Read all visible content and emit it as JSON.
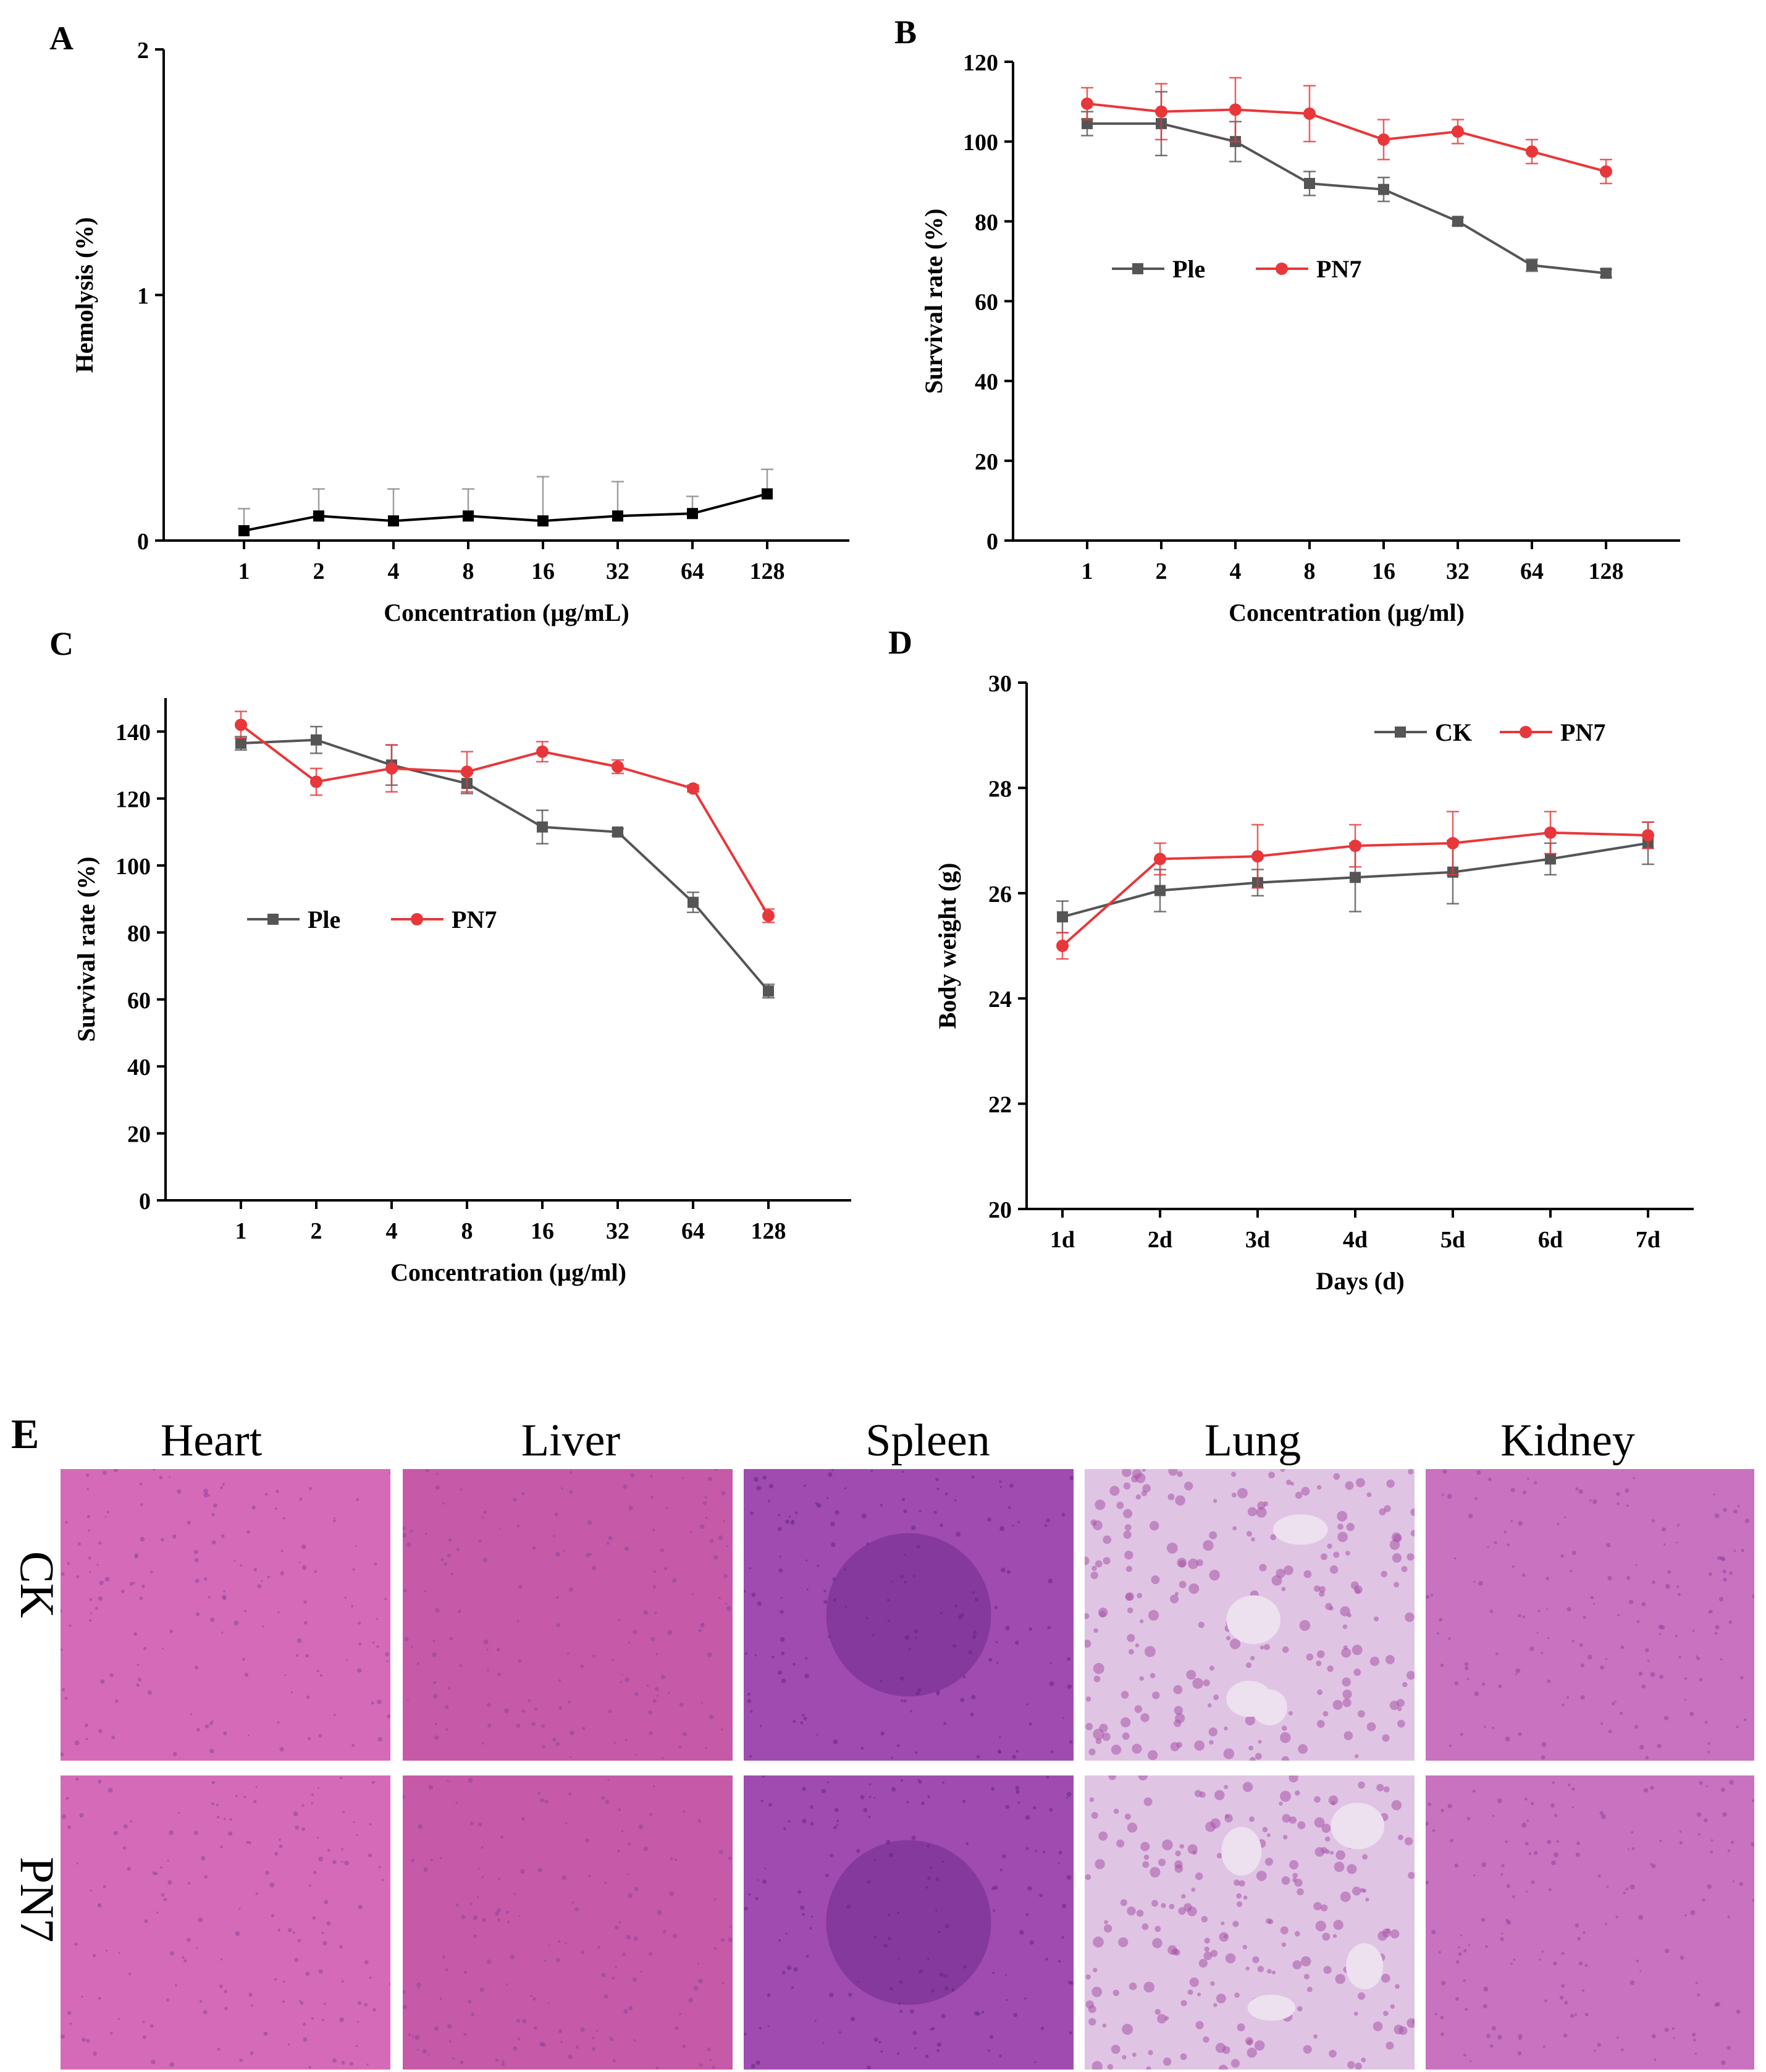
{
  "chart_data": [
    {
      "panel": "A",
      "type": "line",
      "xlabel": "Concentration (µg/mL)",
      "ylabel": "Hemolysis (%)",
      "categories": [
        "1",
        "2",
        "4",
        "8",
        "16",
        "32",
        "64",
        "128"
      ],
      "ylim": [
        0,
        2
      ],
      "yticks": [
        0,
        1,
        2
      ],
      "series": [
        {
          "name": "Hemolysis",
          "color": "#000000",
          "marker": "square",
          "values": [
            0.04,
            0.1,
            0.08,
            0.1,
            0.08,
            0.1,
            0.11,
            0.19
          ],
          "errors": [
            0.09,
            0.11,
            0.13,
            0.11,
            0.18,
            0.14,
            0.07,
            0.1
          ]
        }
      ]
    },
    {
      "panel": "B",
      "type": "line",
      "xlabel": "Concentration (µg/ml)",
      "ylabel": "Survival rate (%)",
      "categories": [
        "1",
        "2",
        "4",
        "8",
        "16",
        "32",
        "64",
        "128"
      ],
      "ylim": [
        0,
        120
      ],
      "yticks": [
        0,
        20,
        40,
        60,
        80,
        100,
        120
      ],
      "legend": "center-left",
      "series": [
        {
          "name": "Ple",
          "color": "#555555",
          "marker": "square",
          "values": [
            104.5,
            104.5,
            100.0,
            89.5,
            88.0,
            80.0,
            69.0,
            67.0
          ],
          "errors": [
            3,
            8,
            5,
            3,
            3,
            1,
            1.5,
            1
          ]
        },
        {
          "name": "PN7",
          "color": "#e8373a",
          "marker": "circle",
          "values": [
            109.5,
            107.5,
            108.0,
            107.0,
            100.5,
            102.5,
            97.5,
            92.5
          ],
          "errors": [
            4,
            7,
            8,
            7,
            5,
            3,
            3,
            3
          ]
        }
      ]
    },
    {
      "panel": "C",
      "type": "line",
      "xlabel": "Concentration (µg/ml)",
      "ylabel": "Survival rate (%)",
      "categories": [
        "1",
        "2",
        "4",
        "8",
        "16",
        "32",
        "64",
        "128"
      ],
      "ylim": [
        0,
        150
      ],
      "yticks": [
        0,
        20,
        40,
        60,
        80,
        100,
        120,
        140
      ],
      "legend": "center-left",
      "series": [
        {
          "name": "Ple",
          "color": "#555555",
          "marker": "square",
          "values": [
            136.5,
            137.5,
            130.0,
            124.5,
            111.5,
            110.0,
            89.0,
            62.5
          ],
          "errors": [
            2,
            4,
            6,
            3,
            5,
            1,
            3,
            2
          ]
        },
        {
          "name": "PN7",
          "color": "#e8373a",
          "marker": "circle",
          "values": [
            142.0,
            125.0,
            129.0,
            128.0,
            134.0,
            129.5,
            123.0,
            85.0
          ],
          "errors": [
            4,
            4,
            7,
            6,
            3,
            2,
            1,
            2
          ]
        }
      ]
    },
    {
      "panel": "D",
      "type": "line",
      "xlabel": "Days (d)",
      "ylabel": "Body weight (g)",
      "categories": [
        "1d",
        "2d",
        "3d",
        "4d",
        "5d",
        "6d",
        "7d"
      ],
      "ylim": [
        20,
        30
      ],
      "yticks": [
        20,
        22,
        24,
        26,
        28,
        30
      ],
      "legend": "top-right",
      "series": [
        {
          "name": "CK",
          "color": "#555555",
          "marker": "square",
          "values": [
            25.55,
            26.05,
            26.2,
            26.3,
            26.4,
            26.65,
            26.95
          ],
          "errors": [
            0.3,
            0.4,
            0.25,
            0.65,
            0.6,
            0.3,
            0.4
          ]
        },
        {
          "name": "PN7",
          "color": "#e8373a",
          "marker": "circle",
          "values": [
            25.0,
            26.65,
            26.7,
            26.9,
            26.95,
            27.15,
            27.1
          ],
          "errors": [
            0.25,
            0.3,
            0.6,
            0.4,
            0.6,
            0.4,
            0.25
          ]
        }
      ]
    }
  ],
  "panel_e": {
    "letter": "E",
    "columns": [
      "Heart",
      "Liver",
      "Spleen",
      "Lung",
      "Kidney"
    ],
    "rows": [
      "CK",
      "PN7"
    ]
  },
  "colors": {
    "heart": "#d56bb8",
    "liver": "#c65aa8",
    "spleen": "#a04bb0",
    "lung": "#e0c4e4",
    "kidney": "#c872c0",
    "ple": "#555555",
    "pn7": "#e8373a"
  }
}
